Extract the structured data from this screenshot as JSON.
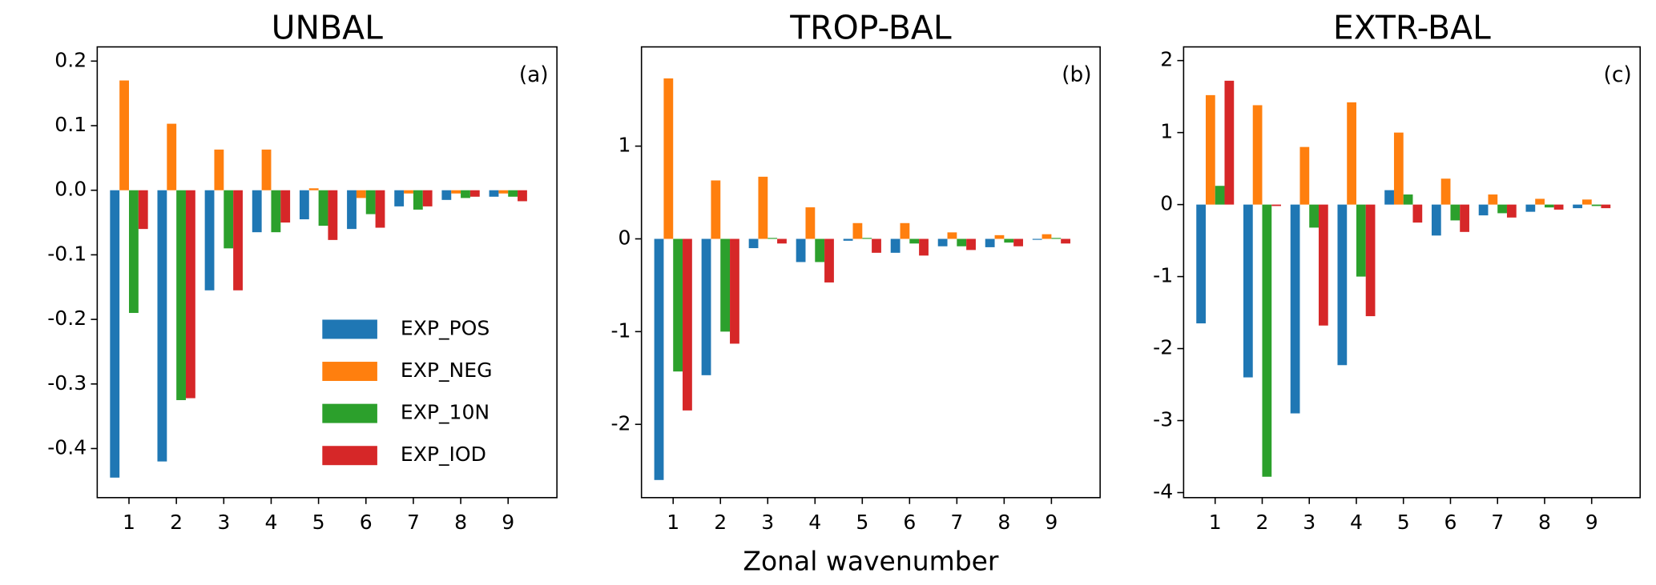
{
  "chart_data": [
    {
      "type": "bar",
      "title": "UNBAL",
      "annotation": "(a)",
      "categories": [
        "1",
        "2",
        "3",
        "4",
        "5",
        "6",
        "7",
        "8",
        "9"
      ],
      "series": [
        {
          "name": "EXP_POS",
          "color": "#1f77b4",
          "values": [
            -0.445,
            -0.42,
            -0.155,
            -0.065,
            -0.045,
            -0.06,
            -0.025,
            -0.015,
            -0.01
          ]
        },
        {
          "name": "EXP_NEG",
          "color": "#ff7f0e",
          "values": [
            0.17,
            0.103,
            0.063,
            0.063,
            0.003,
            -0.012,
            -0.005,
            -0.005,
            -0.005
          ]
        },
        {
          "name": "EXP_10N",
          "color": "#2ca02c",
          "values": [
            -0.19,
            -0.325,
            -0.09,
            -0.065,
            -0.055,
            -0.037,
            -0.03,
            -0.012,
            -0.01
          ]
        },
        {
          "name": "EXP_IOD",
          "color": "#d62728",
          "values": [
            -0.06,
            -0.322,
            -0.155,
            -0.05,
            -0.077,
            -0.058,
            -0.025,
            -0.01,
            -0.017
          ]
        }
      ],
      "ylim": [
        -0.476,
        0.222
      ],
      "yticks": [
        -0.4,
        -0.3,
        -0.2,
        -0.1,
        {
          "value": 0,
          "label": "0.0"
        },
        0.1,
        0.2
      ],
      "legend": "lower right"
    },
    {
      "type": "bar",
      "title": "TROP-BAL",
      "annotation": "(b)",
      "xlabel": "Zonal wavenumber",
      "categories": [
        "1",
        "2",
        "3",
        "4",
        "5",
        "6",
        "7",
        "8",
        "9"
      ],
      "series": [
        {
          "name": "EXP_POS",
          "color": "#1f77b4",
          "values": [
            -2.6,
            -1.47,
            -0.1,
            -0.25,
            -0.02,
            -0.15,
            -0.08,
            -0.09,
            -0.01
          ]
        },
        {
          "name": "EXP_NEG",
          "color": "#ff7f0e",
          "values": [
            1.73,
            0.63,
            0.67,
            0.34,
            0.17,
            0.17,
            0.07,
            0.04,
            0.05
          ]
        },
        {
          "name": "EXP_10N",
          "color": "#2ca02c",
          "values": [
            -1.43,
            -1.0,
            0.01,
            -0.25,
            0.01,
            -0.05,
            -0.08,
            -0.04,
            0.01
          ]
        },
        {
          "name": "EXP_IOD",
          "color": "#d62728",
          "values": [
            -1.85,
            -1.13,
            -0.05,
            -0.47,
            -0.15,
            -0.18,
            -0.12,
            -0.08,
            -0.05
          ]
        }
      ],
      "ylim": [
        -2.79,
        2.07
      ],
      "yticks": [
        -2,
        -1,
        0,
        1
      ]
    },
    {
      "type": "bar",
      "title": "EXTR-BAL",
      "annotation": "(c)",
      "categories": [
        "1",
        "2",
        "3",
        "4",
        "5",
        "6",
        "7",
        "8",
        "9"
      ],
      "series": [
        {
          "name": "EXP_POS",
          "color": "#1f77b4",
          "values": [
            -1.65,
            -2.4,
            -2.9,
            -2.23,
            0.2,
            -0.43,
            -0.15,
            -0.1,
            -0.05
          ]
        },
        {
          "name": "EXP_NEG",
          "color": "#ff7f0e",
          "values": [
            1.52,
            1.38,
            0.8,
            1.42,
            1.0,
            0.36,
            0.14,
            0.08,
            0.07
          ]
        },
        {
          "name": "EXP_10N",
          "color": "#2ca02c",
          "values": [
            0.26,
            -3.78,
            -0.32,
            -1.0,
            0.14,
            -0.22,
            -0.12,
            -0.04,
            -0.02
          ]
        },
        {
          "name": "EXP_IOD",
          "color": "#d62728",
          "values": [
            1.72,
            -0.02,
            -1.68,
            -1.55,
            -0.25,
            -0.38,
            -0.18,
            -0.07,
            -0.05
          ]
        }
      ],
      "ylim": [
        -4.07,
        2.19
      ],
      "yticks": [
        -4,
        -3,
        -2,
        -1,
        0,
        1,
        2
      ]
    }
  ]
}
